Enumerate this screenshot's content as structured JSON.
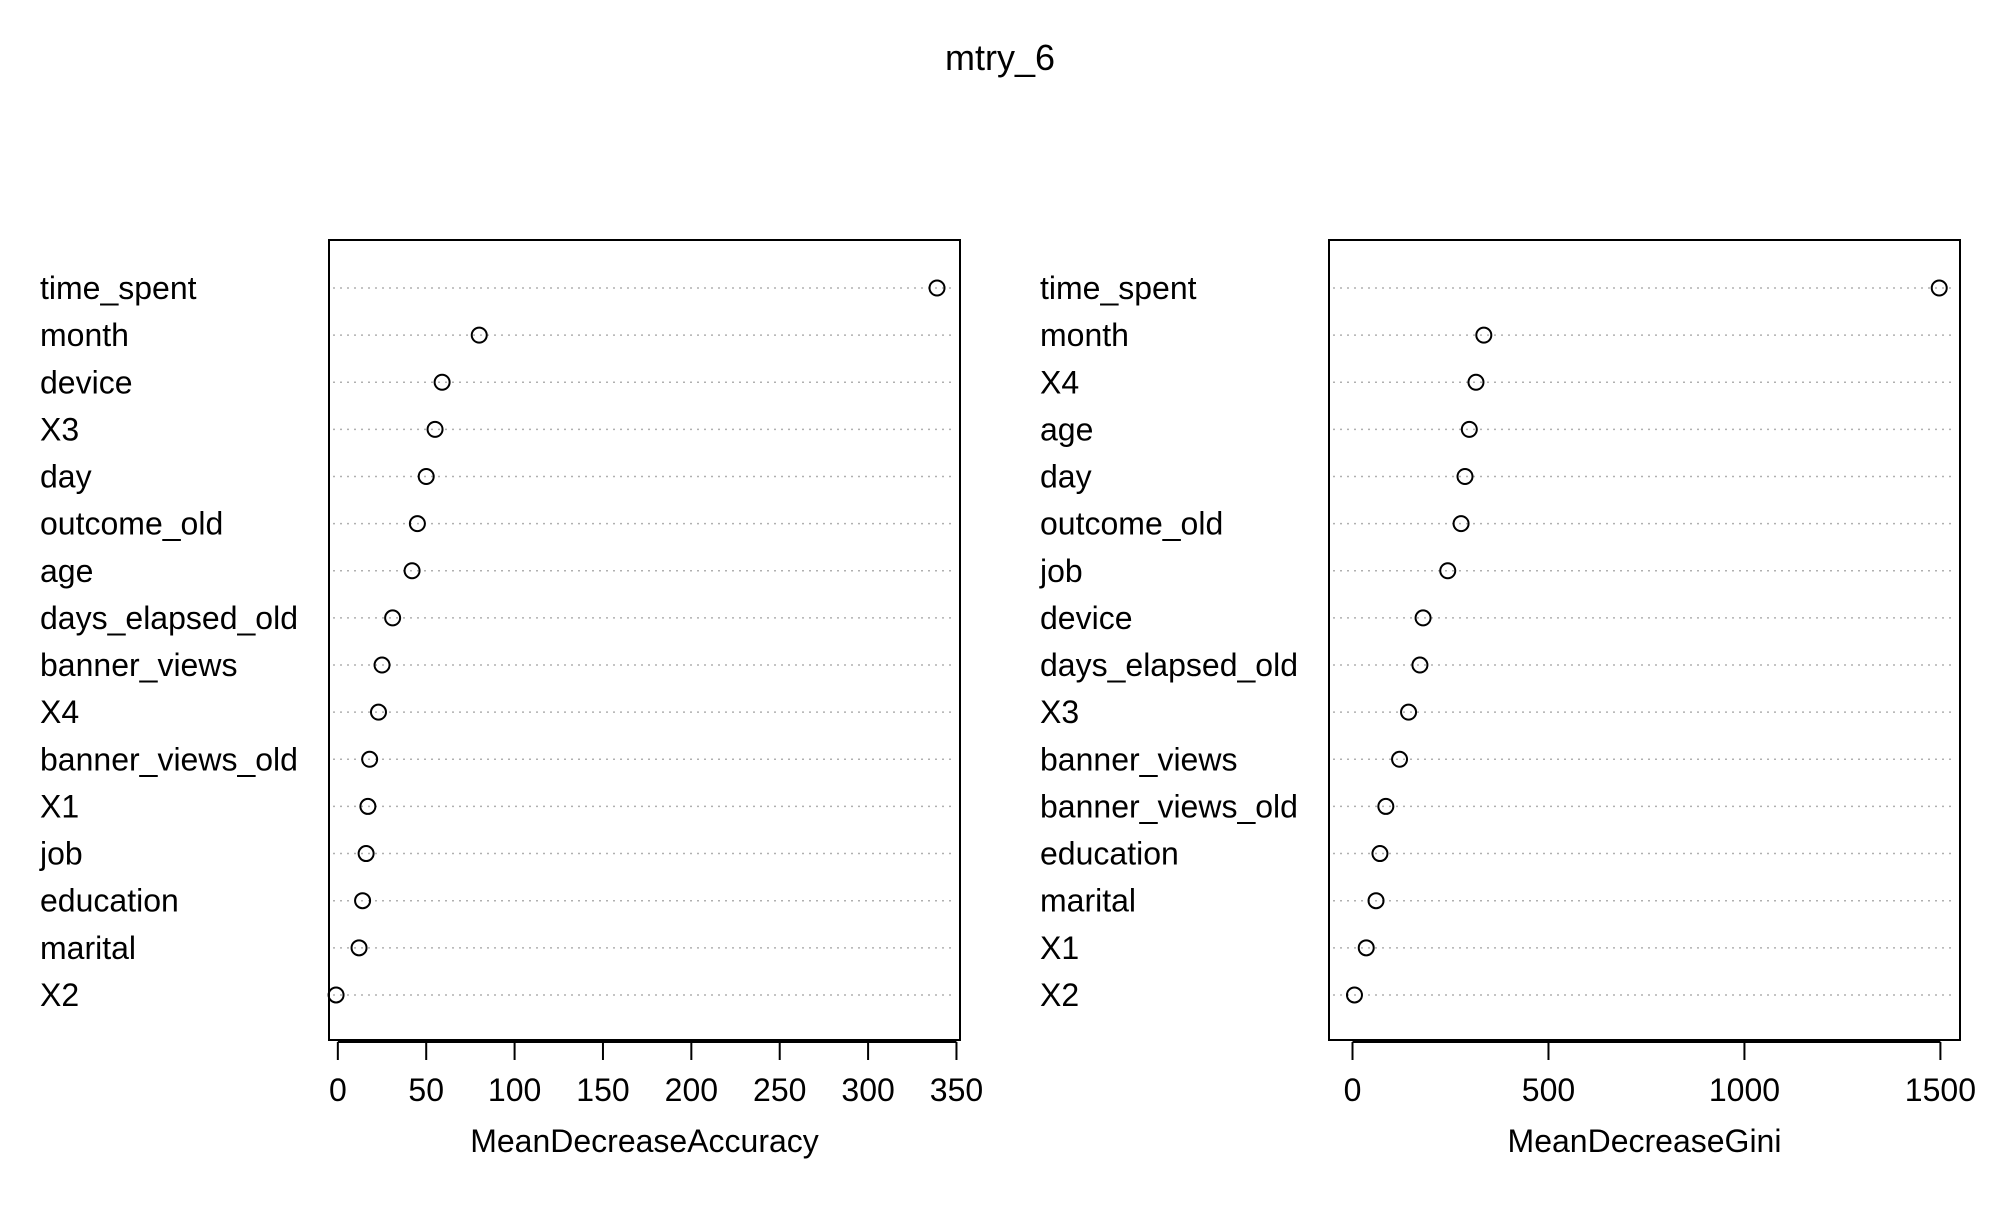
{
  "chart_data": {
    "type": "scatter",
    "title": "mtry_6",
    "panels": [
      {
        "xlabel": "MeanDecreaseAccuracy",
        "xlim": [
          -5,
          352
        ],
        "ticks": [
          0,
          50,
          100,
          150,
          200,
          250,
          300,
          350
        ],
        "tick_labels": [
          "0",
          "50",
          "100",
          "150",
          "200",
          "250",
          "300",
          "350"
        ],
        "variables": [
          "time_spent",
          "month",
          "device",
          "X3",
          "day",
          "outcome_old",
          "age",
          "days_elapsed_old",
          "banner_views",
          "X4",
          "banner_views_old",
          "X1",
          "job",
          "education",
          "marital",
          "X2"
        ],
        "values": [
          339,
          80,
          59,
          55,
          50,
          45,
          42,
          31,
          25,
          23,
          18,
          17,
          16,
          14,
          12,
          -1
        ]
      },
      {
        "xlabel": "MeanDecreaseGini",
        "xlim": [
          -60,
          1550
        ],
        "ticks": [
          0,
          500,
          1000,
          1500
        ],
        "tick_labels": [
          "0",
          "500",
          "1000",
          "1500"
        ],
        "variables": [
          "time_spent",
          "month",
          "X4",
          "age",
          "day",
          "outcome_old",
          "job",
          "device",
          "days_elapsed_old",
          "X3",
          "banner_views",
          "banner_views_old",
          "education",
          "marital",
          "X1",
          "X2"
        ],
        "values": [
          1497,
          335,
          315,
          298,
          287,
          277,
          243,
          180,
          172,
          143,
          120,
          85,
          70,
          60,
          35,
          5
        ]
      }
    ],
    "grid": "dotted-horizontal",
    "marker": "open-circle"
  }
}
